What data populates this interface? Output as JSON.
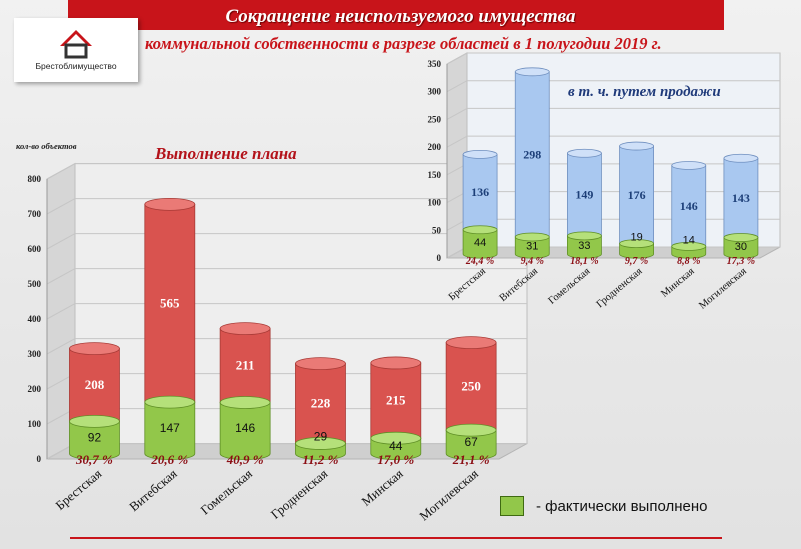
{
  "header": {
    "title_line1": "Сокращение неиспользуемого имущества",
    "title_line2": "коммунальной собственности в разрезе областей в 1 полугодии 2019 г.",
    "logo_text": "Брестоблимущество"
  },
  "colors": {
    "red_top": "#d9534f",
    "green_base": "#92c74a",
    "blue_top": "#a9c8f0",
    "title_red": "#c8141a"
  },
  "legend": {
    "label": "- фактически выполнено"
  },
  "chart_data": [
    {
      "type": "bar",
      "title": "Выполнение плана",
      "ylabel": "кол-во объектов",
      "ylim": [
        0,
        800
      ],
      "yticks": [
        "0",
        "100",
        "200",
        "300",
        "400",
        "500",
        "600",
        "700",
        "800"
      ],
      "categories": [
        "Брестская",
        "Витебская",
        "Гомельская",
        "Гродненская",
        "Минская",
        "Могилевская"
      ],
      "series": [
        {
          "name": "фактически выполнено",
          "values": [
            92,
            147,
            146,
            29,
            44,
            67
          ]
        },
        {
          "values": [
            208,
            565,
            211,
            228,
            215,
            250
          ]
        }
      ],
      "percent_labels": [
        "30,7 %",
        "20,6 %",
        "40,9 %",
        "11,2 %",
        "17,0 %",
        "21,1 %"
      ]
    },
    {
      "type": "bar",
      "title": "в т. ч. путем продажи",
      "ylim": [
        0,
        350
      ],
      "yticks": [
        "0",
        "50",
        "100",
        "150",
        "200",
        "250",
        "300",
        "350"
      ],
      "categories": [
        "Брестская",
        "Витебская",
        "Гомельская",
        "Гродненская",
        "Минская",
        "Могилевская"
      ],
      "series": [
        {
          "name": "фактически выполнено",
          "values": [
            44,
            31,
            33,
            19,
            14,
            30
          ]
        },
        {
          "values": [
            136,
            298,
            149,
            176,
            146,
            143
          ]
        }
      ],
      "percent_labels": [
        "24,4 %",
        "9,4 %",
        "18,1 %",
        "9,7 %",
        "8,8 %",
        "17,3 %"
      ]
    }
  ]
}
